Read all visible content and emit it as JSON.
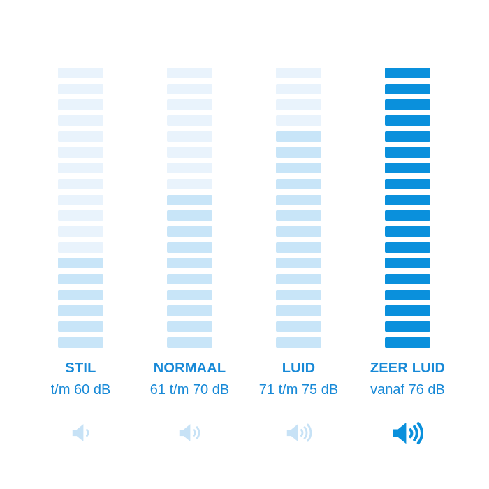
{
  "background_color": "#ffffff",
  "colors": {
    "segment_unfilled": "#e9f3fc",
    "segment_filled_light": "#c8e5f8",
    "segment_filled_solid": "#0a90dc",
    "label_text": "#1789d7",
    "icon_muted": "#c7e2f6",
    "icon_strong": "#0a90dc"
  },
  "chart_data": {
    "type": "bar",
    "variant": "segmented-volume-level-meters",
    "orientation": "vertical",
    "unit": "dB",
    "segments_per_meter": 18,
    "grid": false,
    "legend_position": "none",
    "categories": [
      "STIL",
      "NORMAAL",
      "LUID",
      "ZEER LUID"
    ],
    "values": [
      6,
      10,
      14,
      18
    ],
    "values_meaning": "filled (darker) segments out of 18, counted from the bottom of each meter",
    "ranges": [
      "t/m 60 dB",
      "61 t/m 70 dB",
      "71 t/m 75 dB",
      "vanaf 76 dB"
    ],
    "meters": [
      {
        "label": "STIL",
        "range": "t/m 60 dB",
        "filled_segments": 6,
        "fill_color_key": "segment_filled_light",
        "icon": "speaker-1-wave-icon",
        "volume_waves": 1,
        "icon_color_key": "icon_muted",
        "icon_strong": false
      },
      {
        "label": "NORMAAL",
        "range": "61 t/m 70 dB",
        "filled_segments": 10,
        "fill_color_key": "segment_filled_light",
        "icon": "speaker-2-waves-icon",
        "volume_waves": 2,
        "icon_color_key": "icon_muted",
        "icon_strong": false
      },
      {
        "label": "LUID",
        "range": "71 t/m 75 dB",
        "filled_segments": 14,
        "fill_color_key": "segment_filled_light",
        "icon": "speaker-3-waves-icon",
        "volume_waves": 3,
        "icon_color_key": "icon_muted",
        "icon_strong": false
      },
      {
        "label": "ZEER LUID",
        "range": "vanaf 76 dB",
        "filled_segments": 18,
        "fill_color_key": "segment_filled_solid",
        "icon": "speaker-3-waves-icon",
        "volume_waves": 3,
        "icon_color_key": "icon_strong",
        "icon_strong": true
      }
    ]
  }
}
